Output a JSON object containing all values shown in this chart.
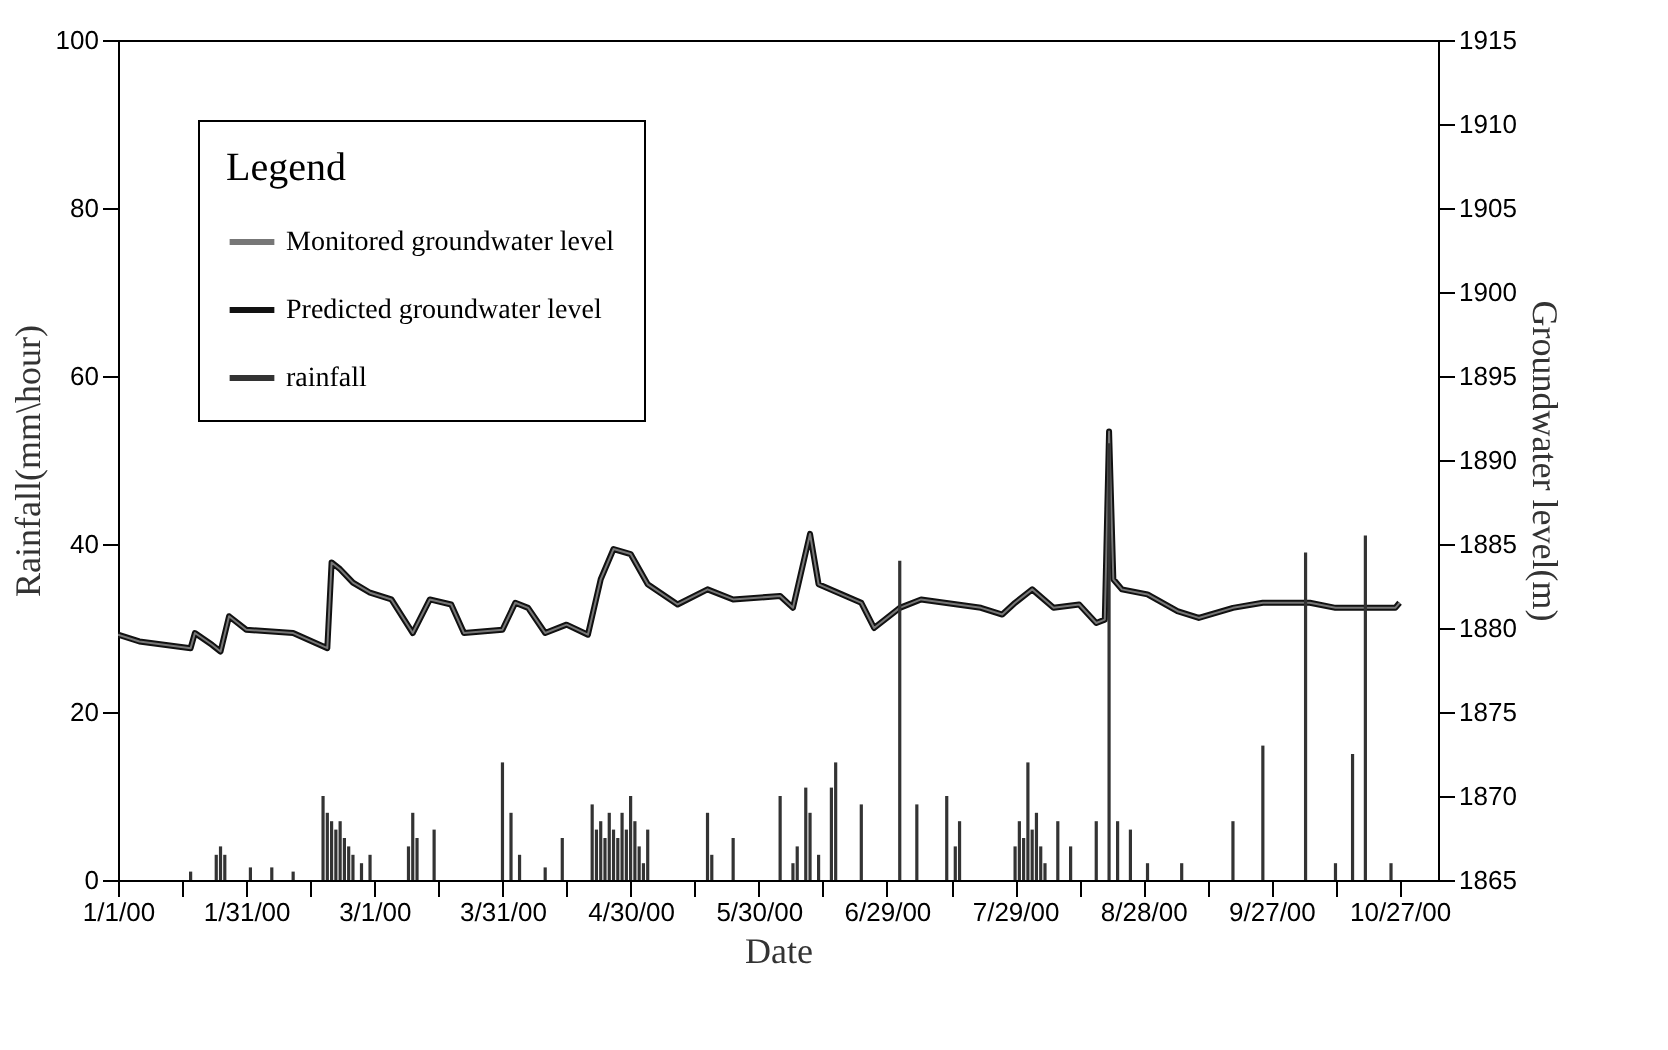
{
  "chart_data": {
    "type": "line",
    "xlabel": "Date",
    "ylabel": "Rainfall(mm\\hour)",
    "y2label": "Groundwater level(m)",
    "legend_title": "Legend",
    "legend": "top left",
    "grid": false,
    "xlim": [
      "2000-01-01",
      "2000-11-05"
    ],
    "xticks": [
      {
        "value": "2000-01-01",
        "label": "1/1/00"
      },
      {
        "value": "2000-01-16",
        "label": null
      },
      {
        "value": "2000-01-31",
        "label": "1/31/00"
      },
      {
        "value": "2000-02-15",
        "label": null
      },
      {
        "value": "2000-03-01",
        "label": "3/1/00"
      },
      {
        "value": "2000-03-16",
        "label": null
      },
      {
        "value": "2000-03-31",
        "label": "3/31/00"
      },
      {
        "value": "2000-04-15",
        "label": null
      },
      {
        "value": "2000-04-30",
        "label": "4/30/00"
      },
      {
        "value": "2000-05-15",
        "label": null
      },
      {
        "value": "2000-05-30",
        "label": "5/30/00"
      },
      {
        "value": "2000-06-14",
        "label": null
      },
      {
        "value": "2000-06-29",
        "label": "6/29/00"
      },
      {
        "value": "2000-07-14",
        "label": null
      },
      {
        "value": "2000-07-29",
        "label": "7/29/00"
      },
      {
        "value": "2000-08-13",
        "label": null
      },
      {
        "value": "2000-08-28",
        "label": "8/28/00"
      },
      {
        "value": "2000-09-12",
        "label": null
      },
      {
        "value": "2000-09-27",
        "label": "9/27/00"
      },
      {
        "value": "2000-10-12",
        "label": null
      },
      {
        "value": "2000-10-27",
        "label": "10/27/00"
      }
    ],
    "ylim": [
      0,
      100
    ],
    "yticks": [
      0,
      20,
      40,
      60,
      80,
      100
    ],
    "y2lim": [
      1865,
      1915
    ],
    "y2ticks": [
      1865,
      1870,
      1875,
      1880,
      1885,
      1890,
      1895,
      1900,
      1905,
      1910,
      1915
    ],
    "series": [
      {
        "name": "Monitored groundwater level",
        "color": "#777777",
        "axis": "y2",
        "x": [
          "2000-01-01",
          "2000-01-06",
          "2000-01-18",
          "2000-01-19",
          "2000-01-23",
          "2000-01-25",
          "2000-01-27",
          "2000-01-31",
          "2000-02-11",
          "2000-02-19",
          "2000-02-20",
          "2000-02-22",
          "2000-02-25",
          "2000-02-29",
          "2000-03-05",
          "2000-03-10",
          "2000-03-14",
          "2000-03-19",
          "2000-03-22",
          "2000-03-31",
          "2000-04-03",
          "2000-04-06",
          "2000-04-10",
          "2000-04-15",
          "2000-04-20",
          "2000-04-23",
          "2000-04-26",
          "2000-04-30",
          "2000-05-04",
          "2000-05-11",
          "2000-05-18",
          "2000-05-24",
          "2000-06-04",
          "2000-06-07",
          "2000-06-11",
          "2000-06-13",
          "2000-06-23",
          "2000-06-26",
          "2000-07-02",
          "2000-07-07",
          "2000-07-21",
          "2000-07-26",
          "2000-07-29",
          "2000-08-02",
          "2000-08-07",
          "2000-08-13",
          "2000-08-17",
          "2000-08-19",
          "2000-08-20",
          "2000-08-21",
          "2000-08-23",
          "2000-08-29",
          "2000-09-05",
          "2000-09-10",
          "2000-09-18",
          "2000-09-25",
          "2000-10-06",
          "2000-10-12",
          "2000-10-26",
          "2000-10-27"
        ],
        "values": [
          1879.6,
          1879.2,
          1878.8,
          1879.7,
          1879.0,
          1878.6,
          1880.7,
          1879.9,
          1879.7,
          1878.8,
          1883.9,
          1883.5,
          1882.7,
          1882.1,
          1881.7,
          1879.7,
          1881.7,
          1881.4,
          1879.7,
          1879.9,
          1881.5,
          1881.2,
          1879.7,
          1880.2,
          1879.6,
          1882.9,
          1884.7,
          1884.4,
          1882.6,
          1881.4,
          1882.3,
          1881.7,
          1881.9,
          1881.2,
          1885.6,
          1882.6,
          1881.5,
          1880.0,
          1881.2,
          1881.7,
          1881.2,
          1880.8,
          1881.5,
          1882.3,
          1881.2,
          1881.4,
          1880.3,
          1880.5,
          1891.7,
          1882.9,
          1882.3,
          1882.0,
          1881.0,
          1880.6,
          1881.2,
          1881.5,
          1881.5,
          1881.2,
          1881.2,
          1881.5
        ]
      },
      {
        "name": "Predicted groundwater level",
        "color": "#111111",
        "axis": "y2",
        "x": [
          "2000-01-01",
          "2000-01-06",
          "2000-01-18",
          "2000-01-19",
          "2000-01-23",
          "2000-01-25",
          "2000-01-27",
          "2000-01-31",
          "2000-02-11",
          "2000-02-19",
          "2000-02-20",
          "2000-02-22",
          "2000-02-25",
          "2000-02-29",
          "2000-03-05",
          "2000-03-10",
          "2000-03-14",
          "2000-03-19",
          "2000-03-22",
          "2000-03-31",
          "2000-04-03",
          "2000-04-06",
          "2000-04-10",
          "2000-04-15",
          "2000-04-20",
          "2000-04-23",
          "2000-04-26",
          "2000-04-30",
          "2000-05-04",
          "2000-05-11",
          "2000-05-18",
          "2000-05-24",
          "2000-06-04",
          "2000-06-07",
          "2000-06-11",
          "2000-06-13",
          "2000-06-23",
          "2000-06-26",
          "2000-07-02",
          "2000-07-07",
          "2000-07-21",
          "2000-07-26",
          "2000-07-29",
          "2000-08-02",
          "2000-08-07",
          "2000-08-13",
          "2000-08-17",
          "2000-08-19",
          "2000-08-20",
          "2000-08-21",
          "2000-08-23",
          "2000-08-29",
          "2000-09-05",
          "2000-09-10",
          "2000-09-18",
          "2000-09-25",
          "2000-10-06",
          "2000-10-12",
          "2000-10-26",
          "2000-10-27"
        ],
        "values": [
          1879.6,
          1879.2,
          1878.8,
          1879.7,
          1879.0,
          1878.6,
          1880.7,
          1879.9,
          1879.7,
          1878.8,
          1883.9,
          1883.5,
          1882.7,
          1882.1,
          1881.7,
          1879.7,
          1881.7,
          1881.4,
          1879.7,
          1879.9,
          1881.5,
          1881.2,
          1879.7,
          1880.2,
          1879.6,
          1882.9,
          1884.7,
          1884.4,
          1882.6,
          1881.4,
          1882.3,
          1881.7,
          1881.9,
          1881.2,
          1885.6,
          1882.6,
          1881.5,
          1880.0,
          1881.2,
          1881.7,
          1881.2,
          1880.8,
          1881.5,
          1882.3,
          1881.2,
          1881.4,
          1880.3,
          1880.5,
          1891.7,
          1882.9,
          1882.3,
          1882.0,
          1881.0,
          1880.6,
          1881.2,
          1881.5,
          1881.5,
          1881.2,
          1881.2,
          1881.5
        ]
      },
      {
        "name": "rainfall",
        "color": "#333333",
        "type": "bar",
        "x": [
          "2000-01-18",
          "2000-01-24",
          "2000-01-25",
          "2000-01-26",
          "2000-02-01",
          "2000-02-06",
          "2000-02-11",
          "2000-02-18",
          "2000-02-19",
          "2000-02-20",
          "2000-02-21",
          "2000-02-22",
          "2000-02-23",
          "2000-02-24",
          "2000-02-25",
          "2000-02-27",
          "2000-02-29",
          "2000-03-09",
          "2000-03-10",
          "2000-03-11",
          "2000-03-15",
          "2000-03-31",
          "2000-04-02",
          "2000-04-04",
          "2000-04-10",
          "2000-04-14",
          "2000-04-21",
          "2000-04-22",
          "2000-04-23",
          "2000-04-24",
          "2000-04-25",
          "2000-04-26",
          "2000-04-27",
          "2000-04-28",
          "2000-04-29",
          "2000-04-30",
          "2000-05-01",
          "2000-05-02",
          "2000-05-03",
          "2000-05-04",
          "2000-05-18",
          "2000-05-19",
          "2000-05-24",
          "2000-06-04",
          "2000-06-07",
          "2000-06-08",
          "2000-06-10",
          "2000-06-11",
          "2000-06-13",
          "2000-06-16",
          "2000-06-17",
          "2000-06-23",
          "2000-07-02",
          "2000-07-06",
          "2000-07-13",
          "2000-07-15",
          "2000-07-16",
          "2000-07-29",
          "2000-07-30",
          "2000-07-31",
          "2000-08-01",
          "2000-08-02",
          "2000-08-03",
          "2000-08-04",
          "2000-08-05",
          "2000-08-08",
          "2000-08-11",
          "2000-08-17",
          "2000-08-20",
          "2000-08-22",
          "2000-08-25",
          "2000-08-29",
          "2000-09-06",
          "2000-09-18",
          "2000-09-25",
          "2000-10-05",
          "2000-10-12",
          "2000-10-16",
          "2000-10-19",
          "2000-10-25"
        ],
        "values": [
          1,
          3,
          4,
          3,
          1.5,
          1.5,
          1,
          10,
          8,
          7,
          6,
          7,
          5,
          4,
          3,
          2,
          3,
          4,
          8,
          5,
          6,
          14,
          8,
          3,
          1.5,
          5,
          9,
          6,
          7,
          5,
          8,
          6,
          5,
          8,
          6,
          10,
          7,
          4,
          2,
          6,
          8,
          3,
          5,
          10,
          2,
          4,
          11,
          8,
          3,
          11,
          14,
          9,
          38,
          9,
          10,
          4,
          7,
          4,
          7,
          5,
          14,
          6,
          8,
          4,
          2,
          7,
          4,
          7,
          52,
          7,
          6,
          2,
          2,
          7,
          16,
          39,
          2,
          15,
          41,
          2
        ]
      }
    ]
  }
}
